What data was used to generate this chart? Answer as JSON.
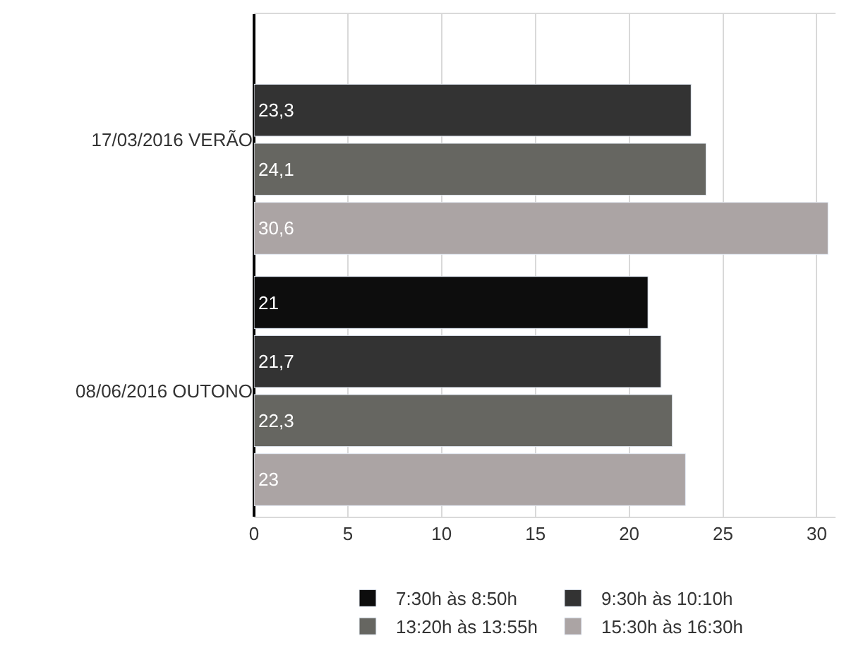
{
  "chart_data": {
    "type": "bar",
    "orientation": "horizontal",
    "categories": [
      "17/03/2016 VERÃO",
      "08/06/2016 OUTONO"
    ],
    "series": [
      {
        "name": "7:30h às 8:50h",
        "color": "#0d0d0d",
        "values": [
          null,
          21
        ],
        "value_labels": [
          null,
          "21"
        ]
      },
      {
        "name": "9:30h às 10:10h",
        "color": "#333333",
        "values": [
          23.3,
          21.7
        ],
        "value_labels": [
          "23,3",
          "21,7"
        ]
      },
      {
        "name": "13:20h às 13:55h",
        "color": "#666661",
        "values": [
          24.1,
          22.3
        ],
        "value_labels": [
          "24,1",
          "22,3"
        ]
      },
      {
        "name": "15:30h às 16:30h",
        "color": "#aba4a4",
        "values": [
          30.6,
          23
        ],
        "value_labels": [
          "30,6",
          "23"
        ]
      }
    ],
    "xlim": [
      0,
      31
    ],
    "xticks": [
      0,
      5,
      10,
      15,
      20,
      25,
      30
    ],
    "grid": "x",
    "legend": "bottom"
  }
}
